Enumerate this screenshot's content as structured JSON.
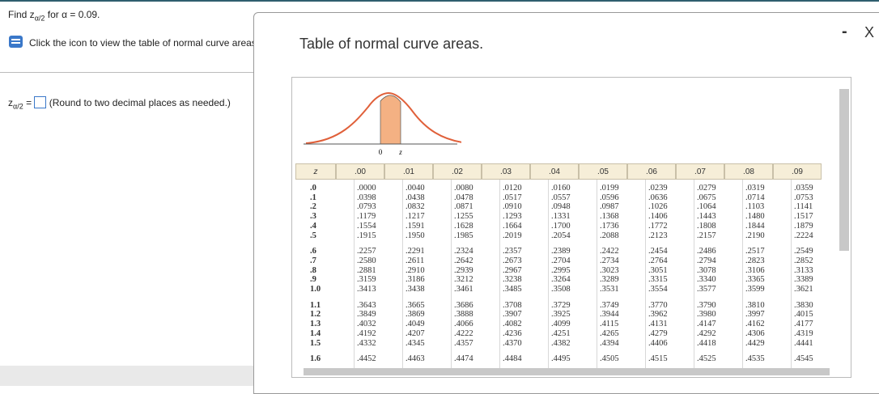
{
  "question": {
    "prefix": "Find z",
    "subscript": "α/2",
    "suffix": "for α = 0.09."
  },
  "hint": "Click the icon to view the table of normal curve areas.",
  "answer": {
    "prefix": "z",
    "subscript": "α/2",
    "equals": "=",
    "note": "(Round to two decimal places as needed.)"
  },
  "dialog": {
    "title": "Table of normal curve areas.",
    "minimize": "-",
    "close": "X"
  },
  "figure": {
    "origin_label": "0",
    "z_label": "z"
  },
  "table": {
    "header": [
      "z",
      ".00",
      ".01",
      ".02",
      ".03",
      ".04",
      ".05",
      ".06",
      ".07",
      ".08",
      ".09"
    ],
    "rows": [
      [
        ".0",
        ".0000",
        ".0040",
        ".0080",
        ".0120",
        ".0160",
        ".0199",
        ".0239",
        ".0279",
        ".0319",
        ".0359"
      ],
      [
        ".1",
        ".0398",
        ".0438",
        ".0478",
        ".0517",
        ".0557",
        ".0596",
        ".0636",
        ".0675",
        ".0714",
        ".0753"
      ],
      [
        ".2",
        ".0793",
        ".0832",
        ".0871",
        ".0910",
        ".0948",
        ".0987",
        ".1026",
        ".1064",
        ".1103",
        ".1141"
      ],
      [
        ".3",
        ".1179",
        ".1217",
        ".1255",
        ".1293",
        ".1331",
        ".1368",
        ".1406",
        ".1443",
        ".1480",
        ".1517"
      ],
      [
        ".4",
        ".1554",
        ".1591",
        ".1628",
        ".1664",
        ".1700",
        ".1736",
        ".1772",
        ".1808",
        ".1844",
        ".1879"
      ],
      [
        ".5",
        ".1915",
        ".1950",
        ".1985",
        ".2019",
        ".2054",
        ".2088",
        ".2123",
        ".2157",
        ".2190",
        ".2224"
      ],
      [
        ".6",
        ".2257",
        ".2291",
        ".2324",
        ".2357",
        ".2389",
        ".2422",
        ".2454",
        ".2486",
        ".2517",
        ".2549"
      ],
      [
        ".7",
        ".2580",
        ".2611",
        ".2642",
        ".2673",
        ".2704",
        ".2734",
        ".2764",
        ".2794",
        ".2823",
        ".2852"
      ],
      [
        ".8",
        ".2881",
        ".2910",
        ".2939",
        ".2967",
        ".2995",
        ".3023",
        ".3051",
        ".3078",
        ".3106",
        ".3133"
      ],
      [
        ".9",
        ".3159",
        ".3186",
        ".3212",
        ".3238",
        ".3264",
        ".3289",
        ".3315",
        ".3340",
        ".3365",
        ".3389"
      ],
      [
        "1.0",
        ".3413",
        ".3438",
        ".3461",
        ".3485",
        ".3508",
        ".3531",
        ".3554",
        ".3577",
        ".3599",
        ".3621"
      ],
      [
        "1.1",
        ".3643",
        ".3665",
        ".3686",
        ".3708",
        ".3729",
        ".3749",
        ".3770",
        ".3790",
        ".3810",
        ".3830"
      ],
      [
        "1.2",
        ".3849",
        ".3869",
        ".3888",
        ".3907",
        ".3925",
        ".3944",
        ".3962",
        ".3980",
        ".3997",
        ".4015"
      ],
      [
        "1.3",
        ".4032",
        ".4049",
        ".4066",
        ".4082",
        ".4099",
        ".4115",
        ".4131",
        ".4147",
        ".4162",
        ".4177"
      ],
      [
        "1.4",
        ".4192",
        ".4207",
        ".4222",
        ".4236",
        ".4251",
        ".4265",
        ".4279",
        ".4292",
        ".4306",
        ".4319"
      ],
      [
        "1.5",
        ".4332",
        ".4345",
        ".4357",
        ".4370",
        ".4382",
        ".4394",
        ".4406",
        ".4418",
        ".4429",
        ".4441"
      ],
      [
        "1.6",
        ".4452",
        ".4463",
        ".4474",
        ".4484",
        ".4495",
        ".4505",
        ".4515",
        ".4525",
        ".4535",
        ".4545"
      ]
    ]
  }
}
